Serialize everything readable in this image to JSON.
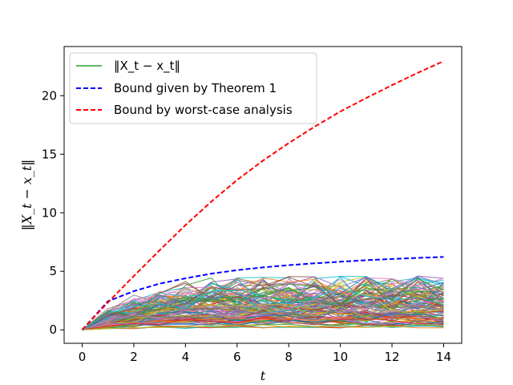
{
  "chart_data": {
    "type": "line",
    "title": "",
    "xlabel": "t",
    "ylabel": "‖X_t − x_t‖",
    "xlim": [
      -0.7,
      14.7
    ],
    "ylim": [
      -1.15,
      24.2
    ],
    "xticks": [
      0,
      2,
      4,
      6,
      8,
      10,
      12,
      14
    ],
    "yticks": [
      0,
      5,
      10,
      15,
      20
    ],
    "grid": false,
    "legend_position": "top-left",
    "series": [
      {
        "name": "Bound given by Theorem 1",
        "color": "#0000ff",
        "style": "dashed",
        "x": [
          0,
          1,
          2,
          3,
          4,
          5,
          6,
          7,
          8,
          9,
          10,
          11,
          12,
          13,
          14
        ],
        "y": [
          0,
          2.45,
          3.3,
          3.95,
          4.4,
          4.8,
          5.1,
          5.33,
          5.52,
          5.68,
          5.82,
          5.95,
          6.05,
          6.15,
          6.22
        ]
      },
      {
        "name": "Bound by worst-case analysis",
        "color": "#ff0000",
        "style": "dashed",
        "x": [
          0,
          1,
          2,
          3,
          4,
          5,
          6,
          7,
          8,
          9,
          10,
          11,
          12,
          13,
          14
        ],
        "y": [
          0,
          2.35,
          4.6,
          6.8,
          8.95,
          10.95,
          12.8,
          14.45,
          15.95,
          17.35,
          18.65,
          19.8,
          20.9,
          21.95,
          22.95
        ]
      }
    ],
    "trajectories": {
      "name": "‖X_t − x_t‖",
      "legend_color": "#2ca02c",
      "count": 120,
      "x": [
        0,
        1,
        2,
        3,
        4,
        5,
        6,
        7,
        8,
        9,
        10,
        11,
        12,
        13,
        14
      ],
      "y_range": [
        0,
        4.6
      ],
      "colors": [
        "#1f77b4",
        "#ff7f0e",
        "#2ca02c",
        "#d62728",
        "#9467bd",
        "#8c564b",
        "#e377c2",
        "#7f7f7f",
        "#bcbd22",
        "#17becf"
      ]
    }
  }
}
